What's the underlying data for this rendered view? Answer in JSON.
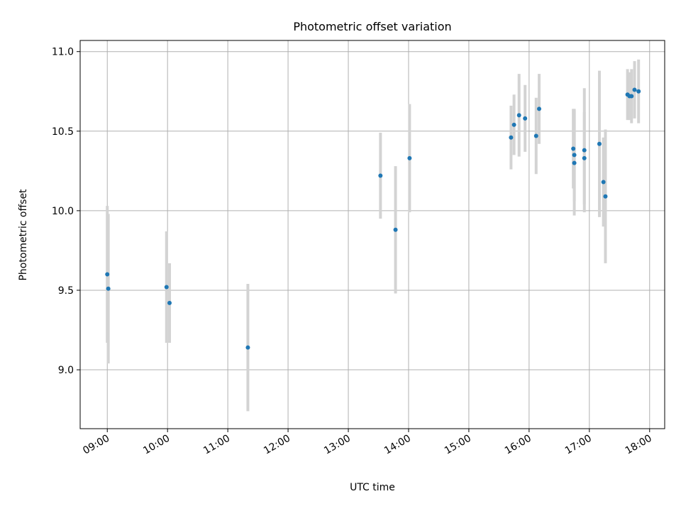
{
  "chart_data": {
    "type": "scatter",
    "title": "Photometric offset variation",
    "xlabel": "UTC time",
    "ylabel": "Photometric offset",
    "xlim": [
      "08:33",
      "18:15"
    ],
    "ylim": [
      8.63,
      11.07
    ],
    "grid": true,
    "x_ticks": [
      "09:00",
      "10:00",
      "11:00",
      "12:00",
      "13:00",
      "14:00",
      "15:00",
      "16:00",
      "17:00",
      "18:00"
    ],
    "y_ticks": [
      "9.0",
      "9.5",
      "10.0",
      "10.5",
      "11.0"
    ],
    "point_color": "#1f77b4",
    "errorbar_color": "#d3d3d3",
    "points": [
      {
        "time": "09:00",
        "y": 9.6,
        "err": 0.43
      },
      {
        "time": "09:01",
        "y": 9.51,
        "err": 0.47
      },
      {
        "time": "09:59",
        "y": 9.52,
        "err": 0.35
      },
      {
        "time": "10:02",
        "y": 9.42,
        "err": 0.25
      },
      {
        "time": "11:20",
        "y": 9.14,
        "err": 0.4
      },
      {
        "time": "13:32",
        "y": 10.22,
        "err": 0.27
      },
      {
        "time": "13:47",
        "y": 9.88,
        "err": 0.4
      },
      {
        "time": "14:01",
        "y": 10.33,
        "err": 0.34
      },
      {
        "time": "15:42",
        "y": 10.46,
        "err": 0.2
      },
      {
        "time": "15:45",
        "y": 10.54,
        "err": 0.19
      },
      {
        "time": "15:50",
        "y": 10.6,
        "err": 0.26
      },
      {
        "time": "15:56",
        "y": 10.58,
        "err": 0.21
      },
      {
        "time": "16:07",
        "y": 10.47,
        "err": 0.24
      },
      {
        "time": "16:10",
        "y": 10.64,
        "err": 0.22
      },
      {
        "time": "16:44",
        "y": 10.39,
        "err": 0.25
      },
      {
        "time": "16:45",
        "y": 10.35,
        "err": 0.29
      },
      {
        "time": "16:45",
        "y": 10.3,
        "err": 0.33
      },
      {
        "time": "16:55",
        "y": 10.38,
        "err": 0.39
      },
      {
        "time": "16:55",
        "y": 10.33,
        "err": 0.29
      },
      {
        "time": "17:10",
        "y": 10.42,
        "err": 0.46
      },
      {
        "time": "17:14",
        "y": 10.18,
        "err": 0.28
      },
      {
        "time": "17:16",
        "y": 10.09,
        "err": 0.42
      },
      {
        "time": "17:38",
        "y": 10.73,
        "err": 0.16
      },
      {
        "time": "17:40",
        "y": 10.72,
        "err": 0.15
      },
      {
        "time": "17:42",
        "y": 10.72,
        "err": 0.17
      },
      {
        "time": "17:45",
        "y": 10.76,
        "err": 0.18
      },
      {
        "time": "17:49",
        "y": 10.75,
        "err": 0.2
      }
    ]
  }
}
